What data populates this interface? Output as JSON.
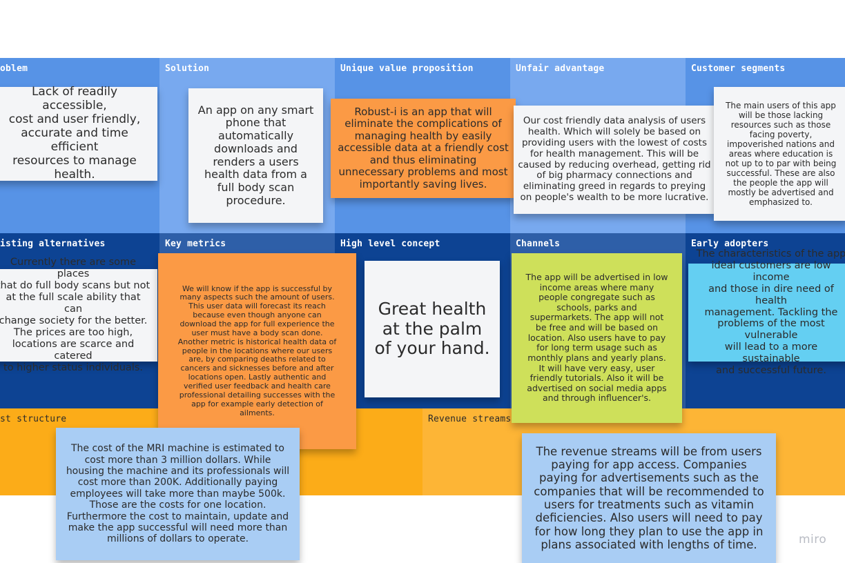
{
  "board": {
    "headers": {
      "problem": "oblem",
      "solution": "Solution",
      "uvp": "Unique value proposition",
      "unfair": "Unfair advantage",
      "segments": "Customer segments",
      "alternatives": "isting alternatives",
      "metrics": "Key metrics",
      "concept": "High level concept",
      "channels": "Channels",
      "adopters": "Early adopters",
      "cost": "st structure",
      "revenue": "Revenue streams"
    },
    "notes": {
      "problem": "Lack of readily accessible,\ncost and user friendly,\naccurate and time efficient\nresources to manage\nhealth.",
      "solution": "An app on any smart\nphone that\nautomatically\ndownloads and\nrenders a users\nhealth data from a\nfull body scan\nprocedure.",
      "uvp": "Robust-i is an app that will\neliminate the complications of\nmanaging health by easily\naccessible data at a friendly cost\nand thus eliminating\nunnecessary problems and most\nimportantly saving lives.",
      "unfair": "Our cost friendly data analysis of users\nhealth. Which will solely be based on\nproviding users with the lowest of costs\nfor health management. This will be\ncaused by reducing overhead, getting rid\nof big pharmacy connections and\neliminating greed in regards to preying\non people's wealth to be more lucrative.",
      "segments": "The main users of this app\nwill be those lacking\nresources such as those\nfacing poverty,\nimpoverished nations and\nareas where education is\nnot up to to par with being\nsuccessful. These are also\nthe people the app will\nmostly be advertised and\nemphasized to.",
      "alternatives": "Currently there are some places\nthat do full body scans but not\nat the full scale ability that can\nchange society for the better.\nThe prices are too high,\nlocations are scarce and catered\nto higher status individuals.",
      "metrics": "We will know if the app is successful by\nmany aspects such the amount of users.\nThis user data will forecast its reach\nbecause even though anyone can\ndownload the app for full experience the\nuser must have a body scan done.\nAnother metric is historical health data of\npeople in the locations where our users\nare, by comparing deaths related to\ncancers and sicknesses before and after\nlocations open. Lastly authentic and\nverified user feedback and health care\nprofessional detailing successes with the\napp for example early detection of\nailments.",
      "concept": "Great health\nat the palm\nof your hand.",
      "channels": "The app will be advertised in low\nincome areas where many\npeople congregate such as\nschools, parks and\nsupermarkets. The app will not\nbe free and will be based on\nlocation. Also users have to pay\nfor long term usage such as\nmonthly plans and yearly plans.\nIt will have very easy, user\nfriendly tutorials. Also it will be\nadvertised on social media apps\nand through influencer's.",
      "adopters": "The characteristics of the app\nideal customers are low income\nand those in dire need of health\nmanagement. Tackling the\nproblems of the most vulnerable\nwill lead to a more sustainable\nand successful future.",
      "cost": "The cost of the MRI machine is estimated to\ncost more than 3 million dollars. While\nhousing the machine and its professionals will\ncost more than 200K. Additionally paying\nemployees will take more than maybe 500k.\nThose are the costs for one location.\nFurthermore the cost to maintain, update and\nmake the app successful will need more than\nmillions of dollars to operate.",
      "revenue": "The revenue streams will be from users\npaying for app access. Companies\npaying for advertisements such as the\ncompanies that will be recommended to\nusers for treatments such as vitamin\ndeficiencies. Also users will need to pay\nfor how long they plan to use the app in\nplans associated with lengths of time."
    },
    "watermark": "miro",
    "colors": {
      "top_blue": "#5793e6",
      "top_blue_light": "#78a9ef",
      "mid_navy": "#0d4393",
      "mid_navy_light": "#2e5fa8",
      "bottom_orange": "#fcac18",
      "bottom_orange_light": "#fdb536",
      "note_white": "#f4f5f7",
      "note_orange": "#fb9a45",
      "note_green": "#cee05a",
      "note_cyan": "#64cff2",
      "note_light_blue": "#a9cdf4"
    }
  }
}
